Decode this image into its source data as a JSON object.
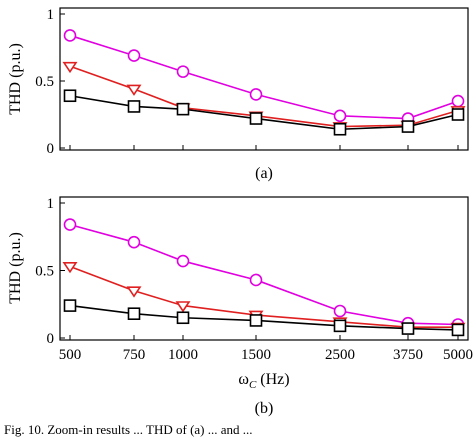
{
  "chart_data": [
    {
      "type": "line",
      "panel_label": "(a)",
      "ylabel": "THD (p.u.)",
      "xlabel": "",
      "categories": [
        "500",
        "750",
        "1000",
        "1500",
        "2500",
        "3750",
        "5000"
      ],
      "ylim": [
        0,
        1
      ],
      "yticks": [
        "0",
        "0.5",
        "1"
      ],
      "grid": false,
      "series": [
        {
          "marker": "circle",
          "color": "#e000e0",
          "values": [
            0.84,
            0.69,
            0.57,
            0.4,
            0.24,
            0.22,
            0.35
          ]
        },
        {
          "marker": "triangle-down",
          "color": "#e02020",
          "values": [
            0.61,
            0.44,
            0.3,
            0.24,
            0.16,
            0.17,
            0.28
          ]
        },
        {
          "marker": "square",
          "color": "#000000",
          "values": [
            0.39,
            0.31,
            0.29,
            0.22,
            0.14,
            0.16,
            0.25
          ]
        }
      ]
    },
    {
      "type": "line",
      "panel_label": "(b)",
      "ylabel": "THD (p.u.)",
      "xlabel": "ω",
      "xlabel_sub": "C",
      "xlabel_unit": " (Hz)",
      "categories": [
        "500",
        "750",
        "1000",
        "1500",
        "2500",
        "3750",
        "5000"
      ],
      "ylim": [
        0,
        1
      ],
      "yticks": [
        "0",
        "0.5",
        "1"
      ],
      "grid": false,
      "series": [
        {
          "marker": "circle",
          "color": "#e000e0",
          "values": [
            0.84,
            0.71,
            0.57,
            0.43,
            0.2,
            0.11,
            0.1
          ]
        },
        {
          "marker": "triangle-down",
          "color": "#e02020",
          "values": [
            0.53,
            0.35,
            0.24,
            0.17,
            0.12,
            0.08,
            0.08
          ]
        },
        {
          "marker": "square",
          "color": "#000000",
          "values": [
            0.24,
            0.18,
            0.15,
            0.13,
            0.09,
            0.07,
            0.06
          ]
        }
      ]
    }
  ],
  "caption_fragment": "Fig. 10.   Zoom-in results ... THD of (a) ... and ..."
}
